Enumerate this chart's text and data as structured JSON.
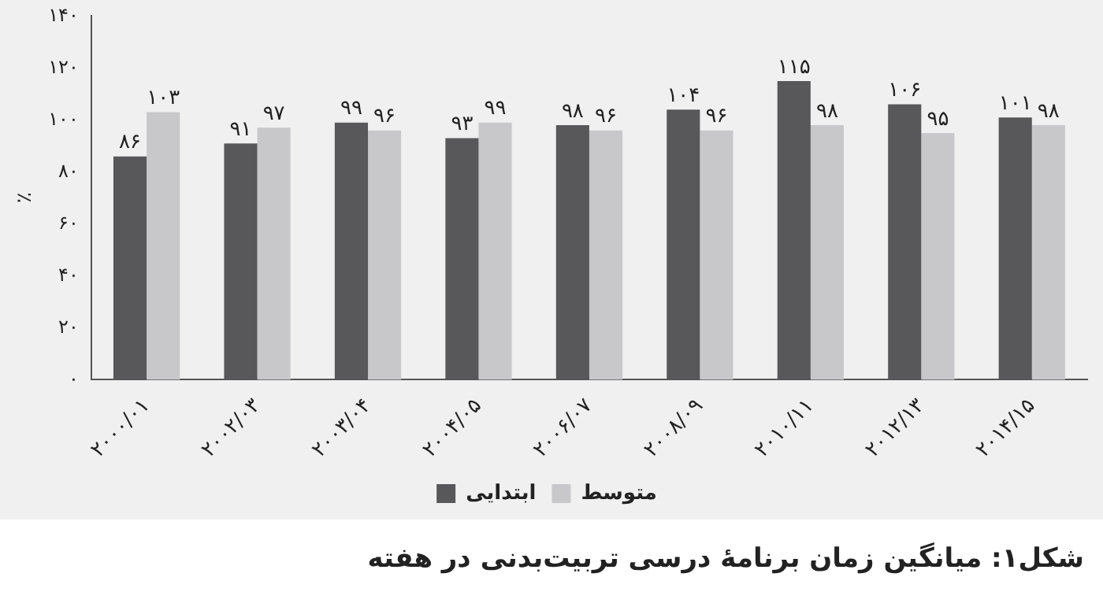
{
  "chart_data": {
    "type": "bar",
    "title": "شکل۱: میانگین زمان برنامهٔ درسی تربیت‌بدنی در هفته",
    "ylabel": "٪",
    "categories": [
      "۲۰۰۰/۰۱",
      "۲۰۰۲/۰۳",
      "۲۰۰۳/۰۴",
      "۲۰۰۴/۰۵",
      "۲۰۰۶/۰۷",
      "۲۰۰۸/۰۹",
      "۲۰۱۰/۱۱",
      "۲۰۱۲/۱۳",
      "۲۰۱۴/۱۵"
    ],
    "series": [
      {
        "name": "ابتدایی",
        "color": "#58585a",
        "values": [
          86,
          91,
          99,
          93,
          98,
          104,
          115,
          106,
          101
        ],
        "value_labels": [
          "۸۶",
          "۹۱",
          "۹۹",
          "۹۳",
          "۹۸",
          "۱۰۴",
          "۱۱۵",
          "۱۰۶",
          "۱۰۱"
        ]
      },
      {
        "name": "متوسط",
        "color": "#c8c8ca",
        "values": [
          103,
          97,
          96,
          99,
          96,
          96,
          98,
          95,
          98
        ],
        "value_labels": [
          "۱۰۳",
          "۹۷",
          "۹۶",
          "۹۹",
          "۹۶",
          "۹۶",
          "۹۸",
          "۹۵",
          "۹۸"
        ]
      }
    ],
    "ylim": [
      0,
      140
    ],
    "yticks": [
      {
        "value": 0,
        "label": "۰"
      },
      {
        "value": 20,
        "label": "۲۰"
      },
      {
        "value": 40,
        "label": "۴۰"
      },
      {
        "value": 60,
        "label": "۶۰"
      },
      {
        "value": 80,
        "label": "۸۰"
      },
      {
        "value": 100,
        "label": "۱۰۰"
      },
      {
        "value": 120,
        "label": "۱۲۰"
      },
      {
        "value": 140,
        "label": "۱۴۰"
      }
    ],
    "grid": false,
    "legend": "bottom"
  }
}
